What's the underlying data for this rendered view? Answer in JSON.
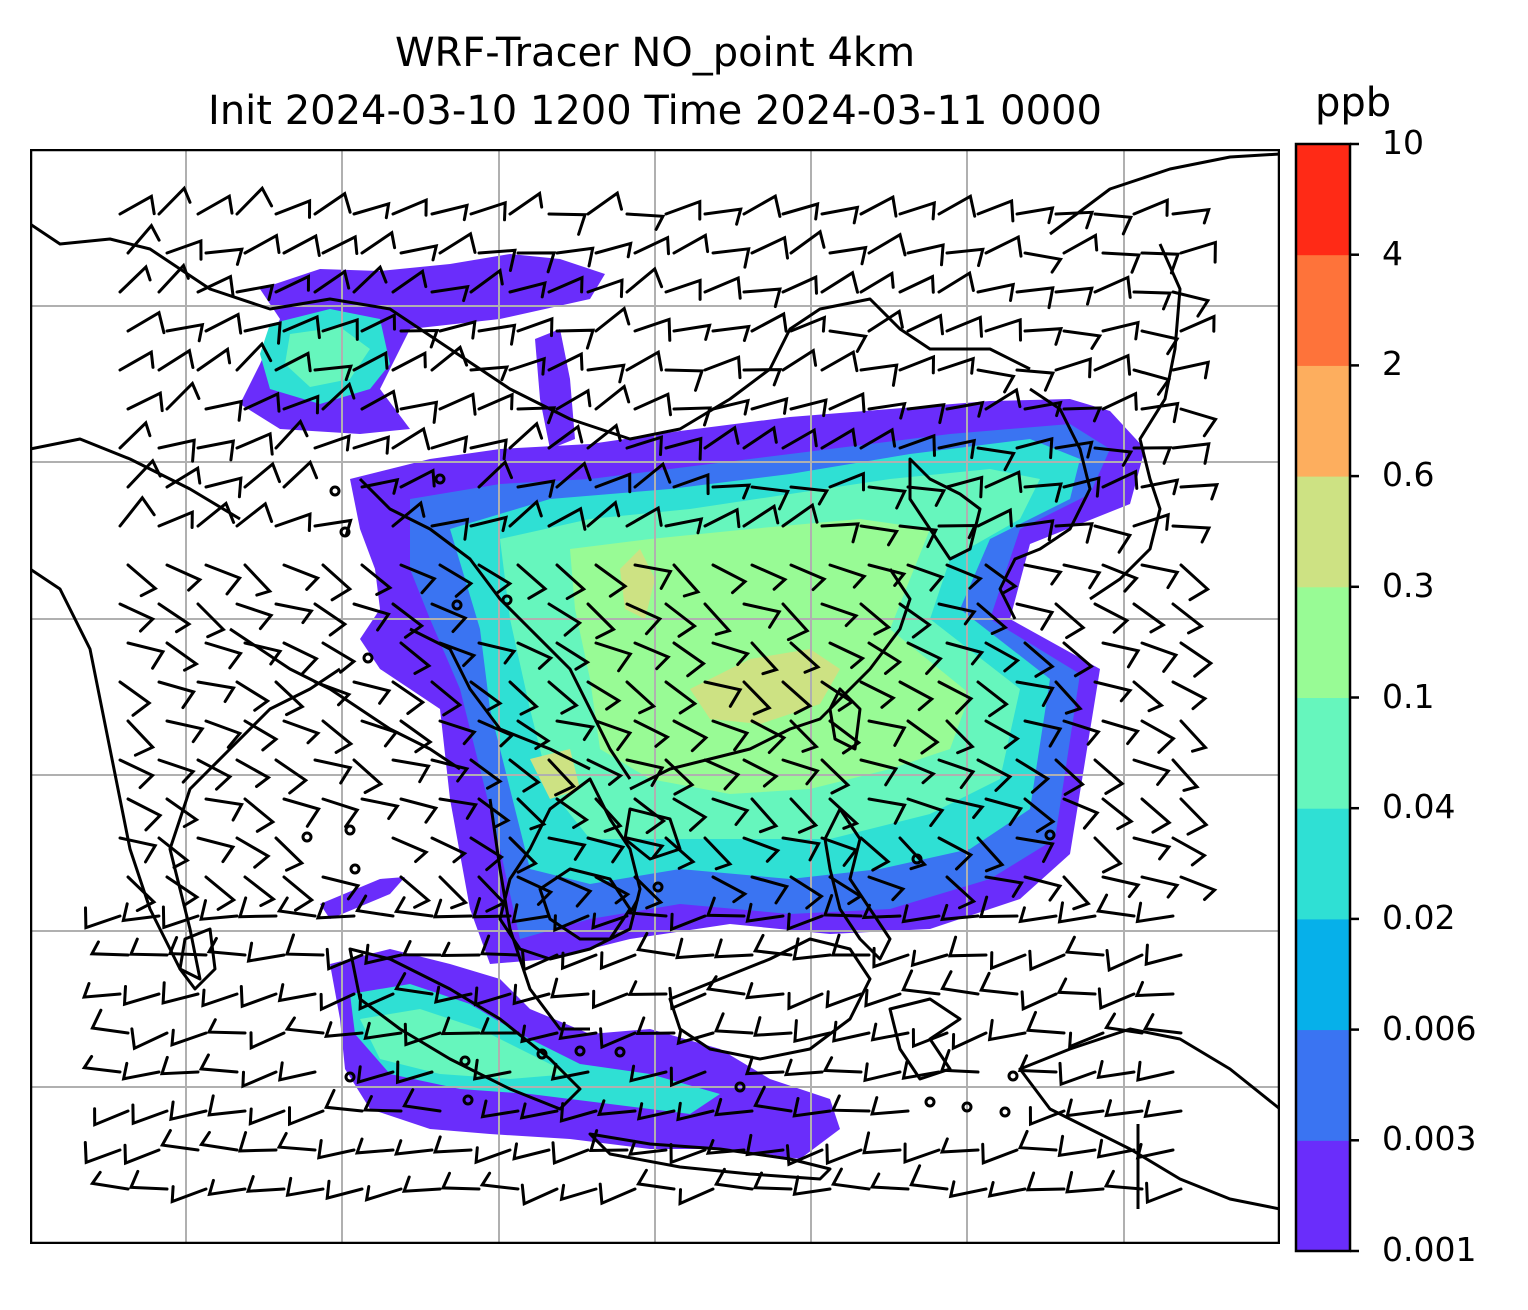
{
  "title": {
    "line1": "WRF-Tracer NO_point 4km",
    "line2": "Init 2024-03-10 1200 Time 2024-03-11 0000"
  },
  "colorbar": {
    "unit": "ppb",
    "levels": [
      "0.001",
      "0.003",
      "0.006",
      "0.02",
      "0.04",
      "0.1",
      "0.3",
      "0.6",
      "2",
      "4",
      "10"
    ],
    "colors": [
      "#6a2dfb",
      "#3a74f2",
      "#06b0ea",
      "#2fe0d4",
      "#66f6bd",
      "#98fb95",
      "#cde283",
      "#fdae5e",
      "#fe733a",
      "#ff2a16"
    ]
  },
  "map": {
    "gridline_color": "#b0b0b0",
    "coast_color": "#000000",
    "barb_color": "#000000",
    "plume_colors": {
      "lowest": "#6a2dfb",
      "low": "#3a74f2",
      "mid": "#2fe0d4",
      "midhigh": "#66f6bd",
      "high": "#98fb95",
      "peak": "#cde283"
    }
  }
}
